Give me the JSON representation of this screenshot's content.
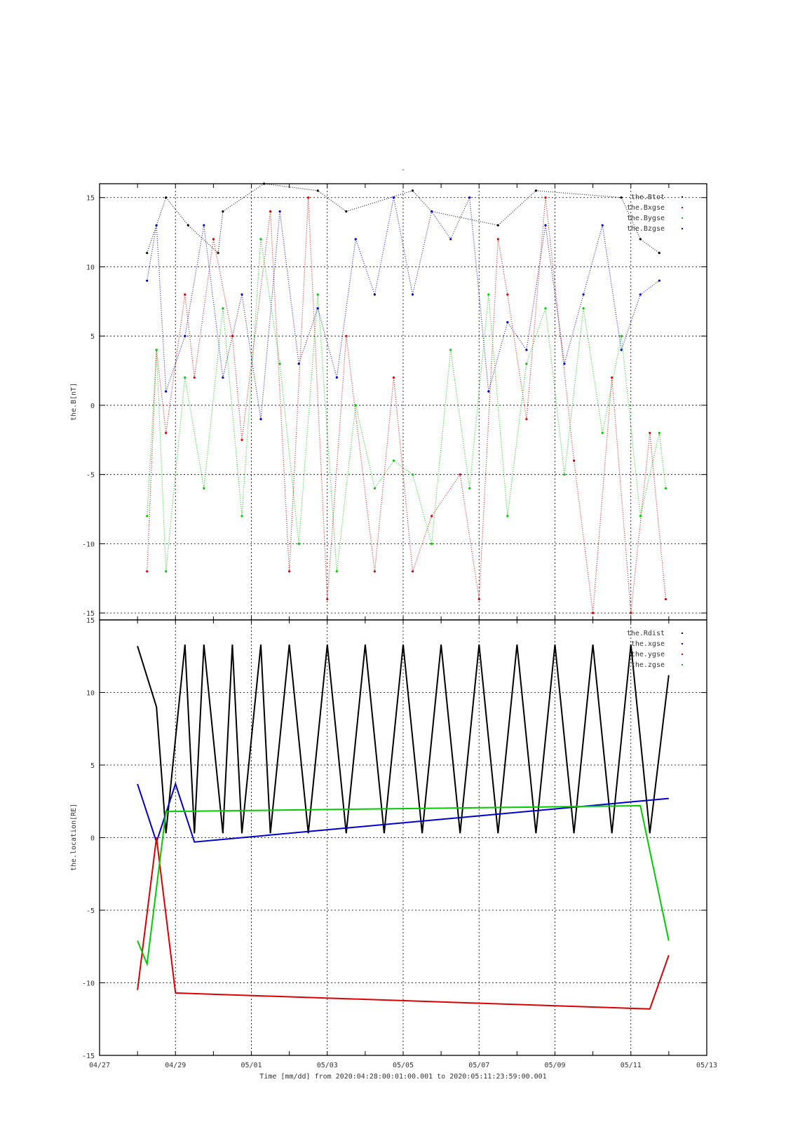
{
  "title_mark": "-",
  "colors": {
    "black": "#000000",
    "red": "#dd0000",
    "green": "#00cc00",
    "blue": "#0000cc"
  },
  "chart_data": [
    {
      "type": "scatter",
      "ylabel": "the.B[nT]",
      "ylim": [
        -15.5,
        16
      ],
      "yticks": [
        -15,
        -10,
        -5,
        0,
        5,
        10,
        15
      ],
      "xlim": [
        "2020-04-27",
        "2020-05-13"
      ],
      "grid": true,
      "legend_position": "top-right",
      "series": [
        {
          "name": "the.Btot",
          "color": "#000000",
          "x": [
            "2020-04-28 06:00",
            "2020-04-28 18:00",
            "2020-04-29 08:00",
            "2020-04-30 03:00",
            "2020-04-30 06:00",
            "2020-05-01 08:00",
            "2020-05-02 18:00",
            "2020-05-03 12:00",
            "2020-05-05 06:00",
            "2020-05-05 18:00",
            "2020-05-07 12:00",
            "2020-05-08 12:00",
            "2020-05-10 18:00",
            "2020-05-11 06:00",
            "2020-05-11 18:00"
          ],
          "y": [
            11,
            15,
            13,
            11,
            14,
            16,
            15.5,
            14,
            15.5,
            14,
            13,
            15.5,
            15,
            12,
            11
          ]
        },
        {
          "name": "the.Bxgse",
          "color": "#dd0000",
          "x": [
            "2020-04-28 06:00",
            "2020-04-28 12:00",
            "2020-04-28 18:00",
            "2020-04-29 06:00",
            "2020-04-29 12:00",
            "2020-04-30 00:00",
            "2020-04-30 12:00",
            "2020-04-30 18:00",
            "2020-05-01 12:00",
            "2020-05-02 00:00",
            "2020-05-02 12:00",
            "2020-05-03 00:00",
            "2020-05-03 12:00",
            "2020-05-04 06:00",
            "2020-05-04 18:00",
            "2020-05-05 06:00",
            "2020-05-05 18:00",
            "2020-05-06 12:00",
            "2020-05-07 00:00",
            "2020-05-07 12:00",
            "2020-05-07 18:00",
            "2020-05-08 06:00",
            "2020-05-08 18:00",
            "2020-05-09 12:00",
            "2020-05-10 00:00",
            "2020-05-10 12:00",
            "2020-05-11 00:00",
            "2020-05-11 12:00",
            "2020-05-11 22:00"
          ],
          "y": [
            -12,
            4,
            -2,
            8,
            2,
            12,
            5,
            -2.5,
            14,
            -12,
            15,
            -14,
            5,
            -12,
            2,
            -12,
            -8,
            -5,
            -14,
            12,
            8,
            -1,
            15,
            -4,
            -15,
            2,
            -15,
            -2,
            -14
          ]
        },
        {
          "name": "the.Bygse",
          "color": "#00cc00",
          "x": [
            "2020-04-28 06:00",
            "2020-04-28 12:00",
            "2020-04-28 18:00",
            "2020-04-29 06:00",
            "2020-04-29 18:00",
            "2020-04-30 06:00",
            "2020-04-30 18:00",
            "2020-05-01 06:00",
            "2020-05-01 18:00",
            "2020-05-02 06:00",
            "2020-05-02 18:00",
            "2020-05-03 06:00",
            "2020-05-03 18:00",
            "2020-05-04 06:00",
            "2020-05-04 18:00",
            "2020-05-05 06:00",
            "2020-05-05 18:00",
            "2020-05-06 06:00",
            "2020-05-06 18:00",
            "2020-05-07 06:00",
            "2020-05-07 18:00",
            "2020-05-08 06:00",
            "2020-05-08 18:00",
            "2020-05-09 06:00",
            "2020-05-09 18:00",
            "2020-05-10 06:00",
            "2020-05-10 18:00",
            "2020-05-11 06:00",
            "2020-05-11 18:00",
            "2020-05-11 22:00"
          ],
          "y": [
            -8,
            4,
            -12,
            2,
            -6,
            7,
            -8,
            12,
            3,
            -10,
            8,
            -12,
            0,
            -6,
            -4,
            -5,
            -10,
            4,
            -6,
            8,
            -8,
            3,
            7,
            -5,
            7,
            -2,
            5,
            -8,
            -2,
            -6
          ]
        },
        {
          "name": "the.Bzgse",
          "color": "#0000cc",
          "x": [
            "2020-04-28 06:00",
            "2020-04-28 12:00",
            "2020-04-28 18:00",
            "2020-04-29 06:00",
            "2020-04-29 18:00",
            "2020-04-30 06:00",
            "2020-04-30 18:00",
            "2020-05-01 06:00",
            "2020-05-01 18:00",
            "2020-05-02 06:00",
            "2020-05-02 18:00",
            "2020-05-03 06:00",
            "2020-05-03 18:00",
            "2020-05-04 06:00",
            "2020-05-04 18:00",
            "2020-05-05 06:00",
            "2020-05-05 18:00",
            "2020-05-06 06:00",
            "2020-05-06 18:00",
            "2020-05-07 06:00",
            "2020-05-07 18:00",
            "2020-05-08 06:00",
            "2020-05-08 18:00",
            "2020-05-09 06:00",
            "2020-05-09 18:00",
            "2020-05-10 06:00",
            "2020-05-10 18:00",
            "2020-05-11 06:00",
            "2020-05-11 18:00"
          ],
          "y": [
            9,
            13,
            1,
            5,
            13,
            2,
            8,
            -1,
            14,
            3,
            7,
            2,
            12,
            8,
            15,
            8,
            14,
            12,
            15,
            1,
            6,
            4,
            13,
            3,
            8,
            13,
            4,
            8,
            9
          ]
        }
      ]
    },
    {
      "type": "line",
      "ylabel": "the.location[RE]",
      "xlabel": "Time [mm/dd]  from 2020:04:28:00:01:00.001  to  2020:05:11:23:59:00.001",
      "ylim": [
        -15,
        15
      ],
      "yticks": [
        -15,
        -10,
        -5,
        0,
        5,
        10,
        15
      ],
      "xticks": [
        "04/27",
        "04/29",
        "05/01",
        "05/03",
        "05/05",
        "05/07",
        "05/09",
        "05/11",
        "05/13"
      ],
      "xtick_dates": [
        "2020-04-27",
        "2020-04-29",
        "2020-05-01",
        "2020-05-03",
        "2020-05-05",
        "2020-05-07",
        "2020-05-09",
        "2020-05-11",
        "2020-05-13"
      ],
      "xlim": [
        "2020-04-27",
        "2020-05-13"
      ],
      "grid": true,
      "legend_position": "top-right",
      "series": [
        {
          "name": "the.Rdist",
          "color": "#000000",
          "x": [
            "2020-04-28 00:00",
            "2020-04-28 12:00",
            "2020-04-28 18:00",
            "2020-04-29 06:00",
            "2020-04-29 12:00",
            "2020-04-29 18:00",
            "2020-04-30 06:00",
            "2020-04-30 12:00",
            "2020-04-30 18:00",
            "2020-05-01 06:00",
            "2020-05-01 12:00",
            "2020-05-02 00:00",
            "2020-05-02 12:00",
            "2020-05-03 00:00",
            "2020-05-03 12:00",
            "2020-05-04 00:00",
            "2020-05-04 12:00",
            "2020-05-05 00:00",
            "2020-05-05 12:00",
            "2020-05-06 00:00",
            "2020-05-06 12:00",
            "2020-05-07 00:00",
            "2020-05-07 12:00",
            "2020-05-08 00:00",
            "2020-05-08 12:00",
            "2020-05-09 00:00",
            "2020-05-09 12:00",
            "2020-05-10 00:00",
            "2020-05-10 12:00",
            "2020-05-11 00:00",
            "2020-05-11 12:00",
            "2020-05-11 23:59"
          ],
          "y": [
            13.2,
            9,
            0.3,
            13.3,
            0.3,
            13.3,
            0.3,
            13.3,
            0.3,
            13.3,
            0.3,
            13.3,
            0.3,
            13.3,
            0.3,
            13.3,
            0.3,
            13.3,
            0.3,
            13.3,
            0.3,
            13.3,
            0.3,
            13.3,
            0.3,
            13.3,
            0.3,
            13.3,
            0.3,
            13.3,
            0.3,
            11.2
          ]
        },
        {
          "name": "the.xgse",
          "color": "#0000cc",
          "x": [
            "2020-04-28 00:00",
            "2020-04-28 12:00",
            "2020-04-29 00:00",
            "2020-04-29 12:00",
            "2020-05-11 23:59"
          ],
          "y": [
            3.7,
            -0.3,
            3.7,
            -0.3,
            2.7
          ]
        },
        {
          "name": "the.ygse",
          "color": "#dd0000",
          "x": [
            "2020-04-28 00:00",
            "2020-04-28 12:00",
            "2020-04-29 00:00",
            "2020-05-11 12:00",
            "2020-05-11 23:59"
          ],
          "y": [
            -10.5,
            0,
            -10.7,
            -11.8,
            -8.1
          ]
        },
        {
          "name": "the.zgse",
          "color": "#00cc00",
          "x": [
            "2020-04-28 00:00",
            "2020-04-28 06:00",
            "2020-04-28 18:00",
            "2020-05-11 06:00",
            "2020-05-11 23:59"
          ],
          "y": [
            -7.1,
            -8.7,
            1.8,
            2.2,
            -7.1
          ]
        }
      ]
    }
  ]
}
